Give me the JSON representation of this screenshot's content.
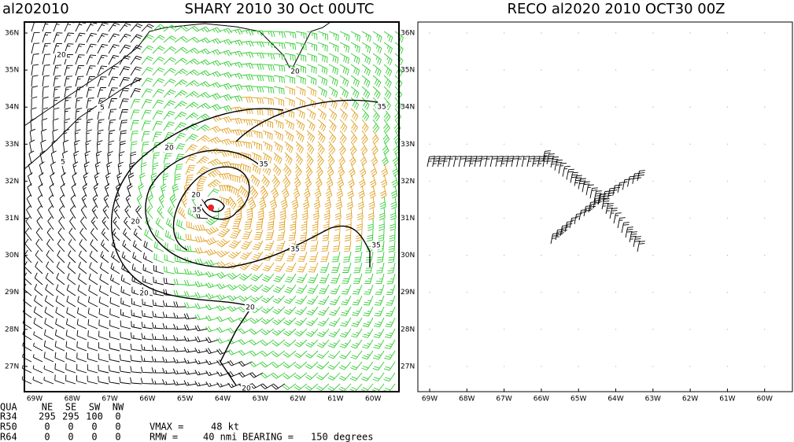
{
  "left_panel": {
    "storm_id": "al202010",
    "title": "SHARY 2010 30 Oct 00UTC",
    "lat_labels": [
      "36N",
      "35N",
      "34N",
      "33N",
      "32N",
      "31N",
      "30N",
      "29N",
      "28N",
      "27N"
    ],
    "lon_labels": [
      "69W",
      "68W",
      "67W",
      "66W",
      "65W",
      "64W",
      "63W",
      "62W",
      "61W",
      "60W"
    ],
    "contour_labels": [
      "20",
      "5",
      "5",
      "20",
      "20",
      "35",
      "20",
      "35",
      "20",
      "35",
      "35",
      "35",
      "20",
      "20",
      "20",
      "20"
    ]
  },
  "right_panel": {
    "title": "RECO al2020 2010 OCT30 00Z",
    "lat_labels": [
      "36N",
      "35N",
      "34N",
      "33N",
      "32N",
      "31N",
      "30N",
      "29N",
      "28N",
      "27N"
    ],
    "lon_labels": [
      "69W",
      "68W",
      "67W",
      "66W",
      "65W",
      "64W",
      "63W",
      "62W",
      "61W",
      "60W"
    ]
  },
  "footer": {
    "header": [
      "QUA",
      "NE",
      "SE",
      "SW",
      "NW"
    ],
    "rows": [
      [
        "R34",
        "295",
        "295",
        "100",
        "0"
      ],
      [
        "R50",
        "0",
        "0",
        "0",
        "0"
      ],
      [
        "R64",
        "0",
        "0",
        "0",
        "0"
      ]
    ],
    "vmax_label": "VMAX =",
    "vmax": "48 kt",
    "rmw_label": "RMW =",
    "rmw": "40 nmi",
    "bearing_label": "BEARING =",
    "bearing": "150 degrees"
  }
}
